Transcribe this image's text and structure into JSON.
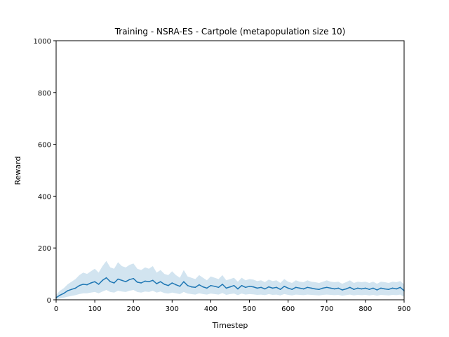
{
  "chart_data": {
    "type": "line",
    "title": "Training - NSRA-ES - Cartpole (metapopulation size 10)",
    "xlabel": "Timestep",
    "ylabel": "Reward",
    "xlim": [
      0,
      900
    ],
    "ylim": [
      0,
      1000
    ],
    "xticks": [
      0,
      100,
      200,
      300,
      400,
      500,
      600,
      700,
      800,
      900
    ],
    "yticks": [
      0,
      200,
      400,
      600,
      800,
      1000
    ],
    "grid": false,
    "series": [
      {
        "color": "#1f77b4",
        "band_color": "#1f77b4",
        "band_opacity": 0.2,
        "x": [
          0,
          10,
          20,
          30,
          40,
          50,
          60,
          70,
          80,
          90,
          100,
          110,
          120,
          130,
          140,
          150,
          160,
          170,
          180,
          190,
          200,
          210,
          220,
          230,
          240,
          250,
          260,
          270,
          280,
          290,
          300,
          310,
          320,
          330,
          340,
          350,
          360,
          370,
          380,
          390,
          400,
          410,
          420,
          430,
          440,
          450,
          460,
          470,
          480,
          490,
          500,
          510,
          520,
          530,
          540,
          550,
          560,
          570,
          580,
          590,
          600,
          610,
          620,
          630,
          640,
          650,
          660,
          670,
          680,
          690,
          700,
          710,
          720,
          730,
          740,
          750,
          760,
          770,
          780,
          790,
          800,
          810,
          820,
          830,
          840,
          850,
          860,
          870,
          880,
          890,
          900
        ],
        "y": [
          8,
          18,
          25,
          35,
          40,
          45,
          55,
          60,
          58,
          65,
          70,
          60,
          75,
          85,
          70,
          65,
          80,
          75,
          70,
          78,
          82,
          68,
          65,
          72,
          70,
          75,
          62,
          70,
          60,
          55,
          65,
          58,
          52,
          70,
          55,
          50,
          48,
          58,
          50,
          45,
          55,
          52,
          48,
          60,
          45,
          50,
          55,
          42,
          55,
          48,
          52,
          50,
          45,
          48,
          42,
          50,
          45,
          48,
          40,
          52,
          45,
          40,
          48,
          45,
          42,
          48,
          45,
          42,
          40,
          45,
          48,
          45,
          42,
          45,
          38,
          42,
          48,
          40,
          45,
          42,
          45,
          40,
          45,
          38,
          45,
          42,
          40,
          45,
          42,
          48,
          35
        ],
        "y_upper": [
          20,
          35,
          45,
          60,
          70,
          80,
          95,
          105,
          100,
          110,
          120,
          105,
          130,
          150,
          125,
          120,
          145,
          130,
          125,
          135,
          140,
          120,
          115,
          125,
          120,
          130,
          105,
          115,
          100,
          95,
          110,
          95,
          85,
          115,
          90,
          85,
          80,
          95,
          85,
          75,
          90,
          85,
          80,
          95,
          75,
          80,
          85,
          70,
          85,
          75,
          80,
          78,
          72,
          75,
          68,
          78,
          72,
          75,
          65,
          80,
          70,
          65,
          75,
          70,
          68,
          75,
          70,
          68,
          65,
          70,
          75,
          70,
          68,
          70,
          62,
          68,
          75,
          65,
          70,
          68,
          70,
          65,
          70,
          62,
          70,
          68,
          65,
          70,
          68,
          72,
          60
        ],
        "y_lower": [
          0,
          5,
          8,
          12,
          15,
          18,
          22,
          25,
          25,
          28,
          30,
          25,
          32,
          38,
          30,
          28,
          35,
          32,
          30,
          35,
          38,
          30,
          28,
          32,
          30,
          35,
          28,
          32,
          26,
          24,
          28,
          25,
          22,
          30,
          24,
          22,
          20,
          25,
          22,
          20,
          24,
          22,
          20,
          26,
          19,
          22,
          24,
          18,
          24,
          20,
          22,
          21,
          19,
          20,
          18,
          22,
          19,
          20,
          17,
          22,
          19,
          17,
          20,
          19,
          18,
          20,
          19,
          18,
          17,
          19,
          20,
          19,
          18,
          19,
          16,
          18,
          20,
          17,
          19,
          18,
          19,
          17,
          19,
          16,
          19,
          18,
          17,
          19,
          18,
          20,
          12
        ]
      }
    ]
  }
}
